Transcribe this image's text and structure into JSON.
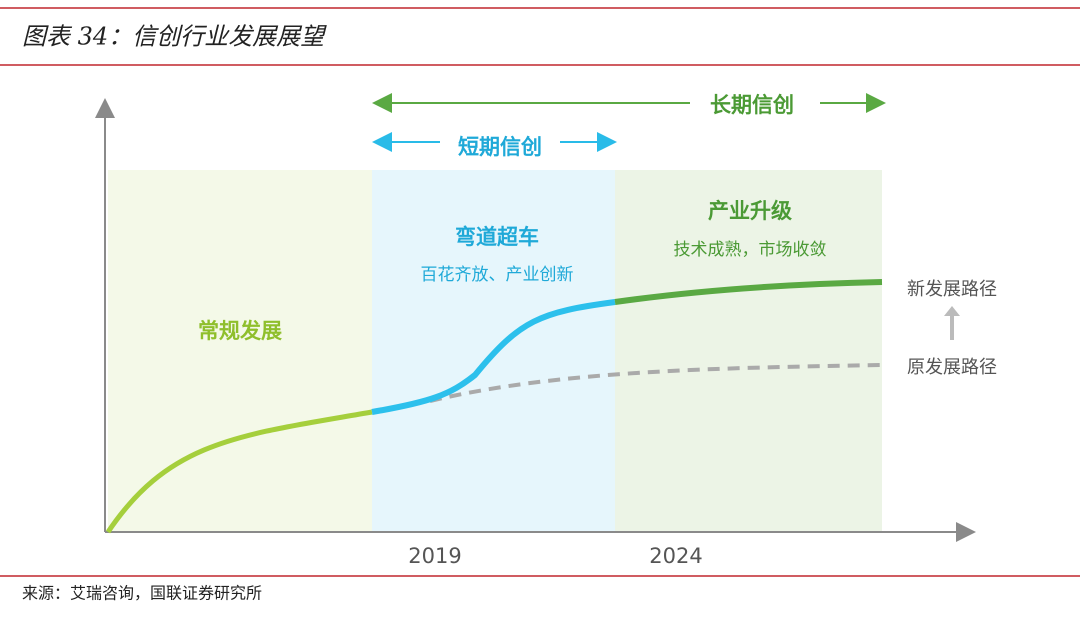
{
  "header": {
    "title": "图表 34：信创行业发展展望"
  },
  "periods": {
    "long_term": "长期信创",
    "short_term": "短期信创"
  },
  "phases": [
    {
      "title": "常规发展"
    },
    {
      "title": "弯道超车",
      "subtitle": "百花齐放、产业创新"
    },
    {
      "title": "产业升级",
      "subtitle": "技术成熟，市场收敛"
    }
  ],
  "paths": {
    "new": "新发展路径",
    "old": "原发展路径"
  },
  "x_labels": [
    "2019",
    "2024"
  ],
  "footer": {
    "source": "来源：艾瑞咨询，国联证券研究所"
  }
}
